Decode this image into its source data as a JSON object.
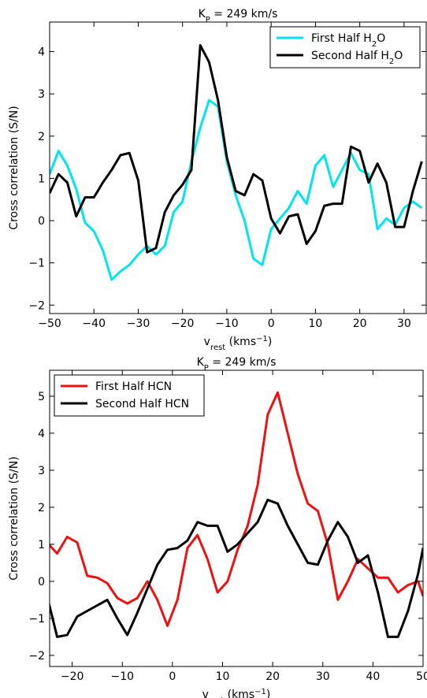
{
  "chart_data": [
    {
      "type": "line",
      "title": [
        {
          "text": "K"
        },
        {
          "text": "P",
          "shift": "sub"
        },
        {
          "text": " = 249 km/s"
        }
      ],
      "xlabel": [
        {
          "text": "v"
        },
        {
          "text": "rest",
          "shift": "sub"
        },
        {
          "text": " (kms"
        },
        {
          "text": "−1",
          "shift": "super"
        },
        {
          "text": ")"
        }
      ],
      "ylabel": [
        {
          "text": "Cross correlation (S/N)"
        }
      ],
      "x": [
        -50,
        -48,
        -46,
        -44,
        -42,
        -40,
        -38,
        -36,
        -34,
        -32,
        -30,
        -28,
        -26,
        -24,
        -22,
        -20,
        -18,
        -16,
        -14,
        -12,
        -10,
        -8,
        -6,
        -4,
        -2,
        0,
        2,
        4,
        6,
        8,
        10,
        12,
        14,
        16,
        18,
        20,
        22,
        24,
        26,
        28,
        30,
        32,
        34
      ],
      "series": [
        {
          "name": [
            {
              "text": "First Half H"
            },
            {
              "text": "2",
              "shift": "sub"
            },
            {
              "text": "O"
            }
          ],
          "color": "#00e5ee",
          "values": [
            1.1,
            1.65,
            1.3,
            0.75,
            -0.05,
            -0.25,
            -0.7,
            -1.4,
            -1.2,
            -1.05,
            -0.8,
            -0.6,
            -0.8,
            -0.6,
            0.2,
            0.45,
            1.4,
            2.2,
            2.85,
            2.7,
            1.4,
            0.6,
            0.0,
            -0.9,
            -1.05,
            -0.2,
            0.05,
            0.3,
            0.7,
            0.4,
            1.3,
            1.55,
            0.8,
            1.2,
            1.6,
            1.2,
            1.1,
            -0.2,
            0.05,
            -0.1,
            0.3,
            0.45,
            0.3
          ]
        },
        {
          "name": [
            {
              "text": "Second Half H"
            },
            {
              "text": "2",
              "shift": "sub"
            },
            {
              "text": "O"
            }
          ],
          "color": "#000000",
          "values": [
            0.65,
            1.1,
            0.9,
            0.1,
            0.55,
            0.55,
            0.9,
            1.2,
            1.55,
            1.6,
            0.95,
            -0.75,
            -0.65,
            0.2,
            0.6,
            0.85,
            1.2,
            4.15,
            3.75,
            2.85,
            1.5,
            0.7,
            0.6,
            1.1,
            0.95,
            0.05,
            -0.3,
            0.1,
            0.15,
            -0.55,
            -0.25,
            0.35,
            0.4,
            0.4,
            1.75,
            1.65,
            0.9,
            1.35,
            0.9,
            -0.15,
            -0.15,
            0.7,
            1.4
          ]
        }
      ],
      "xlim": [
        -50,
        35
      ],
      "ylim": [
        -2.2,
        4.7
      ],
      "xticks": [
        {
          "value": -50,
          "label": "−50"
        },
        {
          "value": -40,
          "label": "−40"
        },
        {
          "value": -30,
          "label": "−30"
        },
        {
          "value": -20,
          "label": "−20"
        },
        {
          "value": -10,
          "label": "−10"
        },
        0,
        10,
        20,
        30
      ],
      "yticks": [
        {
          "value": -2,
          "label": "−2"
        },
        {
          "value": -1,
          "label": "−1"
        },
        0,
        1,
        2,
        3,
        4
      ],
      "legend": "upper right"
    },
    {
      "type": "line",
      "title": [
        {
          "text": "K"
        },
        {
          "text": "P",
          "shift": "sub"
        },
        {
          "text": " = 249 km/s"
        }
      ],
      "xlabel": [
        {
          "text": "v"
        },
        {
          "text": "rest",
          "shift": "sub"
        },
        {
          "text": " (kms"
        },
        {
          "text": "−1",
          "shift": "super"
        },
        {
          "text": ")"
        }
      ],
      "ylabel": [
        {
          "text": "Cross correlation (S/N)"
        }
      ],
      "x": [
        -25,
        -23,
        -21,
        -19,
        -17,
        -15,
        -13,
        -11,
        -9,
        -7,
        -5,
        -3,
        -1,
        1,
        3,
        5,
        7,
        9,
        11,
        13,
        15,
        17,
        19,
        21,
        23,
        25,
        27,
        29,
        31,
        33,
        35,
        37,
        39,
        41,
        43,
        45,
        47,
        49,
        50
      ],
      "series": [
        {
          "name": [
            {
              "text": "First Half HCN"
            }
          ],
          "color": "#ee1111",
          "values": [
            1.05,
            0.75,
            1.2,
            1.05,
            0.15,
            0.1,
            -0.05,
            -0.45,
            -0.6,
            -0.45,
            0.0,
            -0.5,
            -1.2,
            -0.5,
            0.9,
            1.25,
            0.6,
            -0.3,
            0.0,
            0.85,
            1.5,
            2.6,
            4.5,
            5.1,
            4.0,
            2.9,
            2.1,
            1.9,
            1.0,
            -0.5,
            0.0,
            0.6,
            0.35,
            0.1,
            0.1,
            -0.3,
            -0.1,
            0.0,
            -0.4
          ]
        },
        {
          "name": [
            {
              "text": "Second Half HCN"
            }
          ],
          "color": "#000000",
          "values": [
            -0.4,
            -1.5,
            -1.45,
            -0.95,
            -0.8,
            -0.65,
            -0.5,
            -1.0,
            -1.45,
            -0.85,
            -0.2,
            0.45,
            0.85,
            0.9,
            1.1,
            1.6,
            1.5,
            1.5,
            0.8,
            1.0,
            1.3,
            1.6,
            2.2,
            2.1,
            1.5,
            1.0,
            0.5,
            0.45,
            1.1,
            1.6,
            1.2,
            0.5,
            0.7,
            -0.3,
            -1.5,
            -1.5,
            -0.8,
            0.2,
            0.9
          ]
        }
      ],
      "xlim": [
        -24.5,
        50
      ],
      "ylim": [
        -2.3,
        5.7
      ],
      "xticks": [
        {
          "value": -20,
          "label": "−20"
        },
        {
          "value": -10,
          "label": "−10"
        },
        0,
        10,
        20,
        30,
        40,
        50
      ],
      "yticks": [
        {
          "value": -2,
          "label": "−2"
        },
        {
          "value": -1,
          "label": "−1"
        },
        0,
        1,
        2,
        3,
        4,
        5
      ],
      "legend": "upper left"
    }
  ]
}
